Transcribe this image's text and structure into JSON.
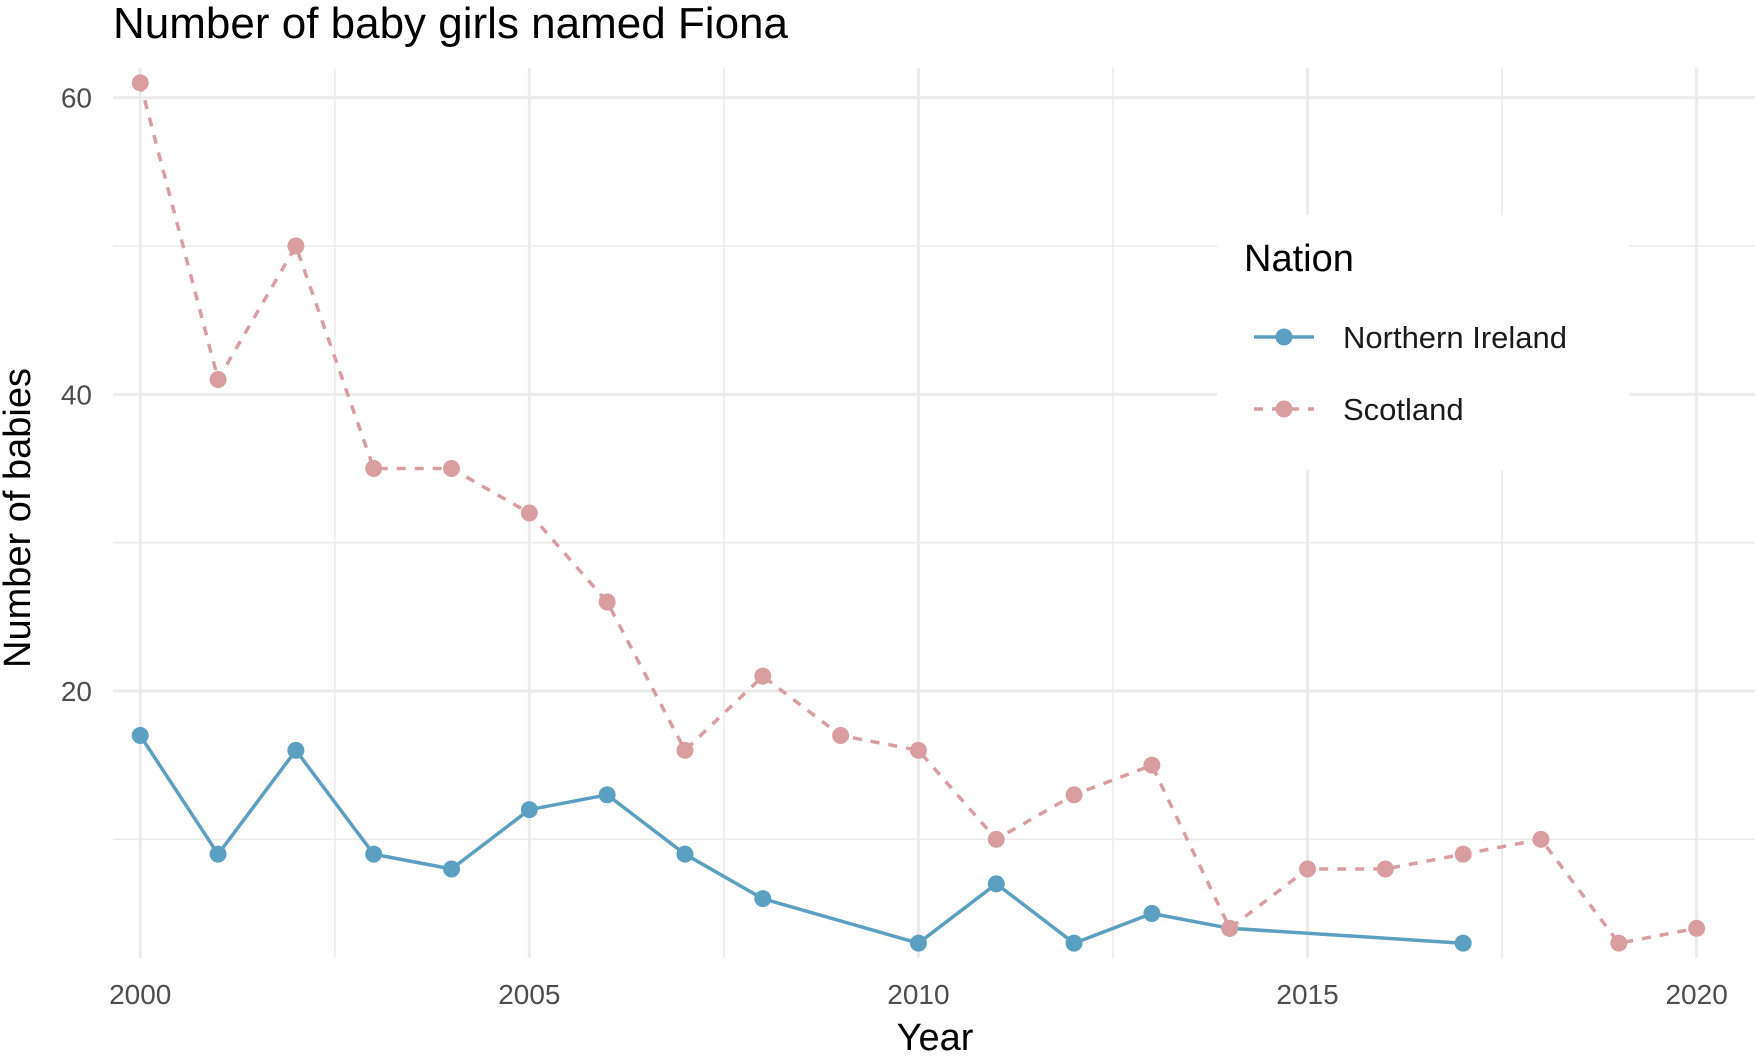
{
  "chart_data": {
    "type": "line",
    "title": "Number of baby girls named Fiona",
    "xlabel": "Year",
    "ylabel": "Number of babies",
    "xlim": [
      1999.65,
      2020.75
    ],
    "ylim": [
      2,
      62
    ],
    "x_ticks": [
      2000,
      2005,
      2010,
      2015,
      2020
    ],
    "y_ticks": [
      20,
      40,
      60
    ],
    "grid": true,
    "legend": {
      "title": "Nation",
      "position": "right-upper"
    },
    "series": [
      {
        "name": "Northern Ireland",
        "color": "#5b9fc1",
        "linestyle": "solid",
        "x": [
          2000,
          2001,
          2002,
          2003,
          2004,
          2005,
          2006,
          2007,
          2008,
          2010,
          2011,
          2012,
          2013,
          2014,
          2017
        ],
        "y": [
          17,
          9,
          16,
          9,
          8,
          12,
          13,
          9,
          6,
          3,
          7,
          3,
          5,
          4,
          3
        ]
      },
      {
        "name": "Scotland",
        "color": "#d99ea2",
        "linestyle": "dashed",
        "x": [
          2000,
          2001,
          2002,
          2003,
          2004,
          2005,
          2006,
          2007,
          2008,
          2009,
          2010,
          2011,
          2012,
          2013,
          2014,
          2015,
          2016,
          2017,
          2018,
          2019,
          2020
        ],
        "y": [
          61,
          41,
          50,
          35,
          35,
          32,
          26,
          16,
          21,
          17,
          16,
          10,
          13,
          15,
          4,
          8,
          8,
          9,
          10,
          3,
          4
        ]
      }
    ]
  }
}
